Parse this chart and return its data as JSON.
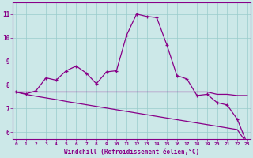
{
  "xlabel": "Windchill (Refroidissement éolien,°C)",
  "bg_color": "#cce8e8",
  "grid_color": "#99cccc",
  "line_color": "#880088",
  "x_values": [
    0,
    1,
    2,
    3,
    4,
    5,
    6,
    7,
    8,
    9,
    10,
    11,
    12,
    13,
    14,
    15,
    16,
    17,
    18,
    19,
    20,
    21,
    22,
    23
  ],
  "line1": [
    7.7,
    7.62,
    7.75,
    8.3,
    8.2,
    8.6,
    8.8,
    8.5,
    8.05,
    8.55,
    8.6,
    10.1,
    11.0,
    10.9,
    10.85,
    9.7,
    8.4,
    8.25,
    7.55,
    7.6,
    7.25,
    7.15,
    6.55,
    5.5
  ],
  "line2": [
    7.7,
    7.7,
    7.7,
    7.7,
    7.7,
    7.7,
    7.7,
    7.7,
    7.7,
    7.7,
    7.7,
    7.7,
    7.7,
    7.7,
    7.7,
    7.7,
    7.7,
    7.7,
    7.7,
    7.7,
    7.6,
    7.6,
    7.55,
    7.55
  ],
  "line3": [
    7.7,
    7.6,
    7.52,
    7.45,
    7.38,
    7.3,
    7.23,
    7.16,
    7.09,
    7.02,
    6.95,
    6.88,
    6.81,
    6.74,
    6.67,
    6.6,
    6.53,
    6.46,
    6.39,
    6.32,
    6.25,
    6.18,
    6.11,
    5.5
  ],
  "ylim": [
    5.7,
    11.5
  ],
  "yticks": [
    6,
    7,
    8,
    9,
    10,
    11
  ],
  "xticks": [
    0,
    1,
    2,
    3,
    4,
    5,
    6,
    7,
    8,
    9,
    10,
    11,
    12,
    13,
    14,
    15,
    16,
    17,
    18,
    19,
    20,
    21,
    22,
    23
  ],
  "xlim": [
    -0.3,
    23.3
  ]
}
